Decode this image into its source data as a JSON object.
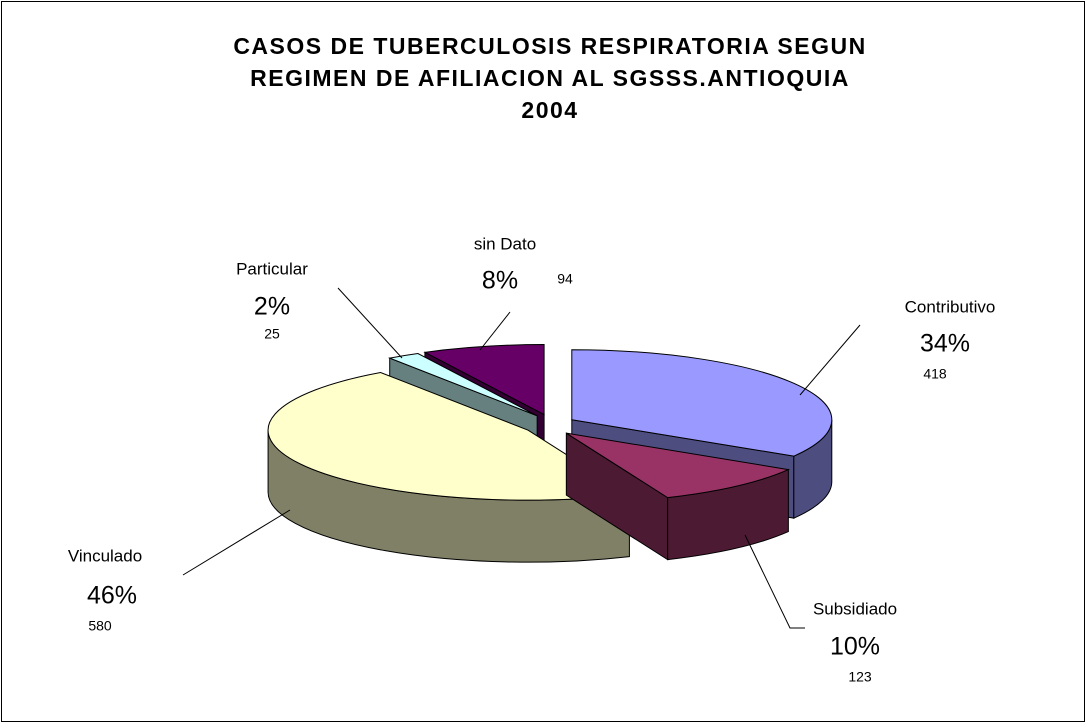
{
  "chart_data": {
    "type": "pie3d",
    "title": "CASOS DE TUBERCULOSIS RESPIRATORIA SEGUN REGIMEN DE AFILIACION AL SGSSS.ANTIOQUIA 2004",
    "categories": [
      "Contributivo",
      "Subsidiado",
      "Vinculado",
      "Particular",
      "sin Dato"
    ],
    "values": [
      418,
      123,
      580,
      25,
      94
    ],
    "percent_labels": [
      "34%",
      "10%",
      "46%",
      "2%",
      "8%"
    ],
    "colors": [
      "#9999ff",
      "#993366",
      "#ffffcc",
      "#ccffff",
      "#660066"
    ]
  }
}
